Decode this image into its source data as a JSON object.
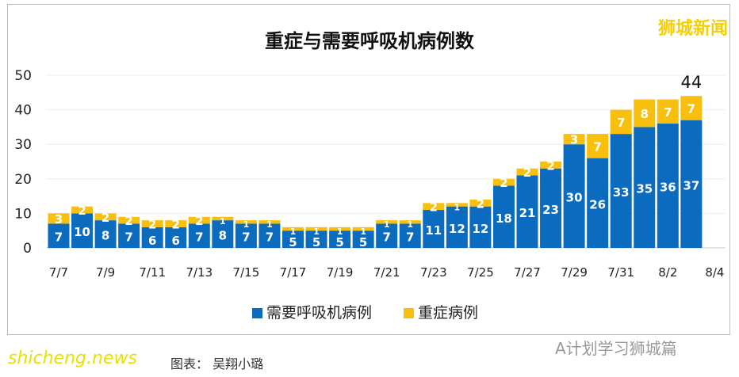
{
  "chart_data": {
    "type": "bar",
    "stacked": true,
    "title": "重症与需要呼吸机病例数",
    "categories": [
      "7/7",
      "7/8",
      "7/9",
      "7/10",
      "7/11",
      "7/12",
      "7/13",
      "7/14",
      "7/15",
      "7/16",
      "7/17",
      "7/18",
      "7/19",
      "7/20",
      "7/21",
      "7/22",
      "7/23",
      "7/24",
      "7/25",
      "7/26",
      "7/27",
      "7/28",
      "7/29",
      "7/30",
      "7/31",
      "8/1",
      "8/2",
      "8/3"
    ],
    "xtick_labels": [
      "7/7",
      "7/9",
      "7/11",
      "7/13",
      "7/15",
      "7/17",
      "7/19",
      "7/21",
      "7/23",
      "7/25",
      "7/27",
      "7/29",
      "7/31",
      "8/2",
      "8/4"
    ],
    "series": [
      {
        "name": "需要呼吸机病例",
        "color": "#0b6bbf",
        "values": [
          7,
          10,
          8,
          7,
          6,
          6,
          7,
          8,
          7,
          7,
          5,
          5,
          5,
          5,
          7,
          7,
          11,
          12,
          12,
          18,
          21,
          23,
          30,
          26,
          33,
          35,
          36,
          37
        ]
      },
      {
        "name": "重症病例",
        "color": "#f9bf0f",
        "values": [
          3,
          2,
          2,
          2,
          2,
          2,
          2,
          1,
          1,
          1,
          1,
          1,
          1,
          1,
          1,
          1,
          2,
          1,
          2,
          2,
          2,
          2,
          3,
          7,
          7,
          8,
          7,
          7
        ]
      }
    ],
    "ylim": [
      0,
      50
    ],
    "yticks": [
      0,
      10,
      20,
      30,
      40,
      50
    ],
    "annotation": "44",
    "legend": "bottom",
    "grid": true
  },
  "watermark": "狮城新闻",
  "caption": "shicheng.news",
  "caption_under": "图表： 吴翔小璐",
  "source": "A计划学习狮城篇"
}
